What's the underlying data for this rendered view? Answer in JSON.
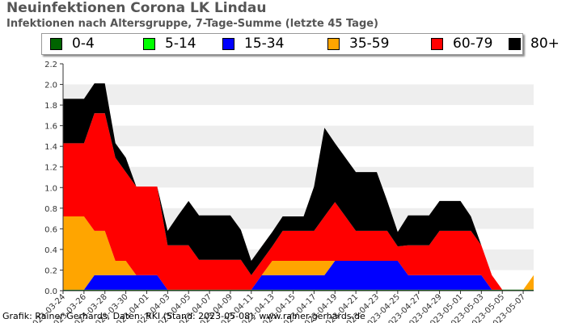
{
  "title": "Neuinfektionen Corona LK Lindau",
  "subtitle": "Infektionen nach Altersgruppe, 7-Tage-Summe (letzte 45 Tage)",
  "credit": "Grafik: Rainer Gerhards, Daten: RKI (Stand: 2023-05-08), www.rainer-gerhards.de",
  "colors": {
    "grid_band": "#eeeeee",
    "axis": "#333333"
  },
  "chart_data": {
    "type": "area",
    "stacked": true,
    "title": "Neuinfektionen Corona LK Lindau",
    "subtitle": "Infektionen nach Altersgruppe, 7-Tage-Summe (letzte 45 Tage)",
    "ylim": [
      0,
      2.2
    ],
    "yticks": [
      "0.0",
      "0.2",
      "0.4",
      "0.6",
      "0.8",
      "1.0",
      "1.2",
      "1.4",
      "1.6",
      "1.8",
      "2.0",
      "2.2"
    ],
    "xtick_labels": [
      "2023-03-24",
      "2023-03-26",
      "2023-03-28",
      "2023-03-30",
      "2023-04-01",
      "2023-04-03",
      "2023-04-05",
      "2023-04-07",
      "2023-04-09",
      "2023-04-11",
      "2023-04-13",
      "2023-04-15",
      "2023-04-17",
      "2023-04-19",
      "2023-04-21",
      "2023-04-23",
      "2023-04-25",
      "2023-04-27",
      "2023-04-29",
      "2023-05-01",
      "2023-05-03",
      "2023-05-05",
      "2023-05-07"
    ],
    "x": [
      "2023-03-24",
      "2023-03-25",
      "2023-03-26",
      "2023-03-27",
      "2023-03-28",
      "2023-03-29",
      "2023-03-30",
      "2023-03-31",
      "2023-04-01",
      "2023-04-02",
      "2023-04-03",
      "2023-04-04",
      "2023-04-05",
      "2023-04-06",
      "2023-04-07",
      "2023-04-08",
      "2023-04-09",
      "2023-04-10",
      "2023-04-11",
      "2023-04-12",
      "2023-04-13",
      "2023-04-14",
      "2023-04-15",
      "2023-04-16",
      "2023-04-17",
      "2023-04-18",
      "2023-04-19",
      "2023-04-20",
      "2023-04-21",
      "2023-04-22",
      "2023-04-23",
      "2023-04-24",
      "2023-04-25",
      "2023-04-26",
      "2023-04-27",
      "2023-04-28",
      "2023-04-29",
      "2023-04-30",
      "2023-05-01",
      "2023-05-02",
      "2023-05-03",
      "2023-05-04",
      "2023-05-05",
      "2023-05-06",
      "2023-05-07",
      "2023-05-08"
    ],
    "series": [
      {
        "name": "0-4",
        "color": "#006400",
        "values": [
          0.01,
          0.01,
          0.01,
          0.01,
          0.01,
          0.01,
          0.01,
          0.01,
          0.01,
          0.01,
          0.01,
          0.01,
          0.01,
          0.01,
          0.01,
          0.01,
          0.01,
          0.01,
          0.01,
          0.01,
          0.01,
          0.01,
          0.01,
          0.01,
          0.01,
          0.01,
          0.01,
          0.01,
          0.01,
          0.01,
          0.01,
          0.01,
          0.01,
          0.01,
          0.01,
          0.01,
          0.01,
          0.01,
          0.01,
          0.01,
          0.01,
          0.01,
          0.01,
          0.01,
          0.01,
          0.01
        ]
      },
      {
        "name": "5-14",
        "color": "#00ff00",
        "values": [
          0,
          0,
          0,
          0,
          0,
          0,
          0,
          0,
          0,
          0,
          0,
          0,
          0,
          0,
          0,
          0,
          0,
          0,
          0,
          0,
          0,
          0,
          0,
          0,
          0,
          0,
          0,
          0,
          0,
          0,
          0,
          0,
          0,
          0,
          0,
          0,
          0,
          0,
          0,
          0,
          0,
          0,
          0,
          0,
          0,
          0
        ]
      },
      {
        "name": "15-34",
        "color": "#0000ff",
        "values": [
          0,
          0,
          0,
          0.14,
          0.14,
          0.14,
          0.14,
          0.14,
          0.14,
          0.14,
          0,
          0,
          0,
          0,
          0,
          0,
          0,
          0,
          0,
          0.14,
          0.14,
          0.14,
          0.14,
          0.14,
          0.14,
          0.14,
          0.28,
          0.28,
          0.28,
          0.28,
          0.28,
          0.28,
          0.28,
          0.14,
          0.14,
          0.14,
          0.14,
          0.14,
          0.14,
          0.14,
          0.14,
          0,
          0,
          0,
          0,
          0
        ]
      },
      {
        "name": "35-59",
        "color": "#ffa500",
        "values": [
          0.71,
          0.71,
          0.71,
          0.43,
          0.43,
          0.14,
          0.14,
          0,
          0,
          0,
          0,
          0,
          0,
          0,
          0,
          0,
          0,
          0,
          0,
          0,
          0.14,
          0.14,
          0.14,
          0.14,
          0.14,
          0.14,
          0,
          0,
          0,
          0,
          0,
          0,
          0,
          0,
          0,
          0,
          0,
          0,
          0,
          0,
          0,
          0,
          0,
          0,
          0,
          0.14
        ]
      },
      {
        "name": "60-79",
        "color": "#ff0000",
        "values": [
          0.71,
          0.71,
          0.71,
          1.14,
          1.14,
          1.0,
          0.86,
          0.86,
          0.86,
          0.86,
          0.43,
          0.43,
          0.43,
          0.29,
          0.29,
          0.29,
          0.29,
          0.29,
          0.14,
          0.14,
          0.14,
          0.29,
          0.29,
          0.29,
          0.29,
          0.43,
          0.57,
          0.43,
          0.29,
          0.29,
          0.29,
          0.29,
          0.14,
          0.29,
          0.29,
          0.29,
          0.43,
          0.43,
          0.43,
          0.43,
          0.29,
          0.14,
          0,
          0,
          0,
          0
        ]
      },
      {
        "name": "80+",
        "color": "#000000",
        "values": [
          0.43,
          0.43,
          0.43,
          0.29,
          0.29,
          0.14,
          0.14,
          0,
          0,
          0,
          0.14,
          0.29,
          0.43,
          0.43,
          0.43,
          0.43,
          0.43,
          0.29,
          0.14,
          0.14,
          0.14,
          0.14,
          0.14,
          0.14,
          0.43,
          0.86,
          0.57,
          0.57,
          0.57,
          0.57,
          0.57,
          0.29,
          0.14,
          0.29,
          0.29,
          0.29,
          0.29,
          0.29,
          0.29,
          0.14,
          0,
          0,
          0,
          0,
          0,
          0
        ]
      }
    ]
  }
}
